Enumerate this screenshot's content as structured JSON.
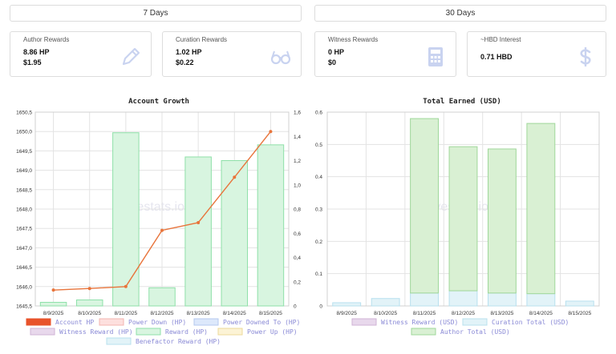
{
  "tabs": {
    "seven_days": "7 Days",
    "thirty_days": "30 Days"
  },
  "cards": [
    {
      "id": "author",
      "title": "Author Rewards",
      "value1": "8.86 HP",
      "value2": "$1.95",
      "icon": "pencil-icon"
    },
    {
      "id": "curation",
      "title": "Curation Rewards",
      "value1": "1.02 HP",
      "value2": "$0.22",
      "icon": "glasses-icon"
    },
    {
      "id": "witness",
      "title": "Witness Rewards",
      "value1": "0 HP",
      "value2": "$0",
      "icon": "calculator-icon"
    },
    {
      "id": "hbd",
      "title": "~HBD Interest",
      "value1": "0.71 HBD",
      "value2": "",
      "icon": "dollar-icon"
    }
  ],
  "watermark": "hivestats.io",
  "colors": {
    "account_hp": "#e8743b",
    "reward_fill": "#d8f5e0",
    "reward_stroke": "#8ee0a8",
    "author_fill": "#d9f0d3",
    "author_stroke": "#9fd79a",
    "curation_fill": "#e2f3f8",
    "curation_stroke": "#b8e0ee",
    "witness_fill": "#e8d8ec",
    "legend_text": "#8a8ad6"
  },
  "chart_data": [
    {
      "type": "bar",
      "title": "Account Growth",
      "categories": [
        "8/9/2025",
        "8/10/2025",
        "8/11/2025",
        "8/12/2025",
        "8/13/2025",
        "8/14/2025",
        "8/15/2025"
      ],
      "y_left": {
        "min": 1645.5,
        "max": 1650.5,
        "ticks": [
          "1645,5",
          "1646,0",
          "1646,5",
          "1647,0",
          "1647,5",
          "1648,0",
          "1648,5",
          "1649,0",
          "1649,5",
          "1650,0",
          "1650,5"
        ]
      },
      "y_right": {
        "min": 0,
        "max": 1.6,
        "ticks": [
          "0",
          "0,2",
          "0,4",
          "0,6",
          "0,8",
          "1,0",
          "1,2",
          "1,4",
          "1,6"
        ]
      },
      "series": [
        {
          "name": "Account HP",
          "kind": "line",
          "axis": "left",
          "values": [
            1645.91,
            1645.95,
            1646.0,
            1647.45,
            1647.65,
            1648.82,
            1650.0
          ]
        },
        {
          "name": "Power Down (HP)",
          "kind": "bar",
          "axis": "right",
          "values": [
            0,
            0,
            0,
            0,
            0,
            0,
            0
          ]
        },
        {
          "name": "Power Downed To (HP)",
          "kind": "bar",
          "axis": "right",
          "values": [
            0,
            0,
            0,
            0,
            0,
            0,
            0
          ]
        },
        {
          "name": "Witness Reward (HP)",
          "kind": "bar",
          "axis": "right",
          "values": [
            0,
            0,
            0,
            0,
            0,
            0,
            0
          ]
        },
        {
          "name": "Reward (HP)",
          "kind": "bar",
          "axis": "right",
          "values": [
            0.03,
            0.05,
            1.43,
            0.15,
            1.23,
            1.2,
            1.33
          ]
        },
        {
          "name": "Power Up (HP)",
          "kind": "bar",
          "axis": "right",
          "values": [
            0,
            0,
            0,
            0,
            0,
            0,
            0
          ]
        },
        {
          "name": "Benefactor Reward (HP)",
          "kind": "bar",
          "axis": "right",
          "values": [
            0,
            0,
            0,
            0,
            0,
            0,
            0
          ]
        }
      ],
      "legend": [
        "Account HP",
        "Power Down (HP)",
        "Power Downed To (HP)",
        "Witness Reward (HP)",
        "Reward (HP)",
        "Power Up (HP)",
        "Benefactor Reward (HP)"
      ],
      "legend_placement": "bottom",
      "grid": true
    },
    {
      "type": "bar",
      "title": "Total Earned (USD)",
      "categories": [
        "8/9/2025",
        "8/10/2025",
        "8/11/2025",
        "8/12/2025",
        "8/13/2025",
        "8/14/2025",
        "8/15/2025"
      ],
      "ylim": [
        0,
        0.6
      ],
      "y_ticks": [
        "0",
        "0.1",
        "0.2",
        "0.3",
        "0.4",
        "0.5",
        "0.6"
      ],
      "stacked": true,
      "series": [
        {
          "name": "Witness Reward (USD)",
          "values": [
            0,
            0,
            0,
            0,
            0,
            0,
            0
          ]
        },
        {
          "name": "Curation Total (USD)",
          "values": [
            0.01,
            0.023,
            0.04,
            0.047,
            0.04,
            0.038,
            0.015
          ]
        },
        {
          "name": "Author Total (USD)",
          "values": [
            0,
            0,
            0.54,
            0.446,
            0.446,
            0.527,
            0
          ]
        }
      ],
      "legend": [
        "Witness Reward (USD)",
        "Curation Total (USD)",
        "Author Total (USD)"
      ],
      "legend_placement": "bottom",
      "grid": true
    }
  ]
}
